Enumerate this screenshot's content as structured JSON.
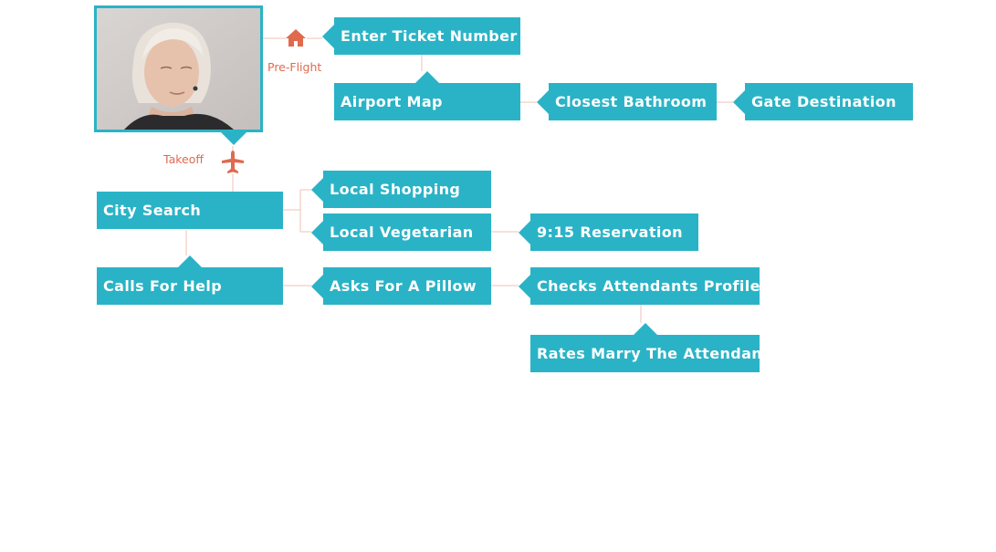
{
  "diagram": {
    "colors": {
      "node": "#2AB3C6",
      "accent": "#E06A4E",
      "connector": "#f0c2b6"
    },
    "phase_labels": {
      "preflight": "Pre-Flight",
      "takeoff": "Takeoff"
    },
    "icons": {
      "preflight": "house-icon",
      "takeoff": "airplane-icon",
      "photo": "woman-portrait-photo"
    },
    "nodes": {
      "enter_ticket": "Enter Ticket Number",
      "airport_map": "Airport Map",
      "closest_bathroom": "Closest Bathroom",
      "gate_destination": "Gate Destination",
      "city_search": "City Search",
      "local_shopping": "Local Shopping",
      "local_vegetarian": "Local Vegetarian",
      "reservation": "9:15 Reservation",
      "calls_for_help": "Calls For Help",
      "asks_for_pillow": "Asks For A Pillow",
      "checks_profile": "Checks Attendants Profile",
      "rates_marry": "Rates Marry The Attendant"
    }
  }
}
